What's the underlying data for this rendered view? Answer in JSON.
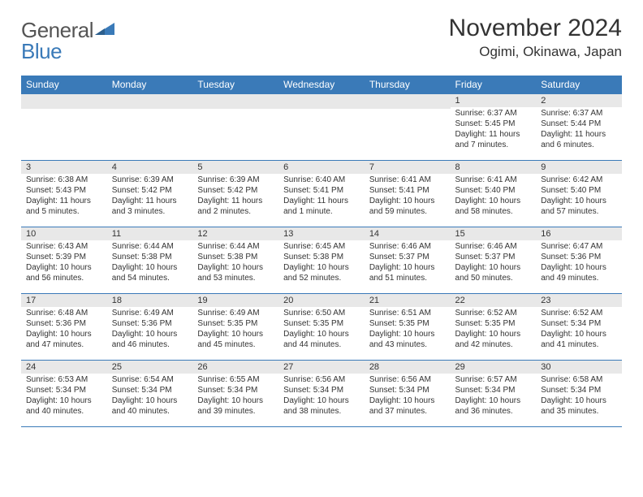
{
  "logo": {
    "word1": "General",
    "word2": "Blue"
  },
  "title": "November 2024",
  "location": "Ogimi, Okinawa, Japan",
  "colors": {
    "header_bg": "#3a7ab8",
    "header_text": "#ffffff",
    "day_band": "#e8e8e8",
    "border": "#3a7ab8",
    "text": "#333333",
    "logo_gray": "#555555",
    "logo_blue": "#3a7ab8",
    "page_bg": "#ffffff"
  },
  "weekdays": [
    "Sunday",
    "Monday",
    "Tuesday",
    "Wednesday",
    "Thursday",
    "Friday",
    "Saturday"
  ],
  "weeks": [
    [
      null,
      null,
      null,
      null,
      null,
      {
        "n": "1",
        "sunrise": "Sunrise: 6:37 AM",
        "sunset": "Sunset: 5:45 PM",
        "daylight": "Daylight: 11 hours and 7 minutes."
      },
      {
        "n": "2",
        "sunrise": "Sunrise: 6:37 AM",
        "sunset": "Sunset: 5:44 PM",
        "daylight": "Daylight: 11 hours and 6 minutes."
      }
    ],
    [
      {
        "n": "3",
        "sunrise": "Sunrise: 6:38 AM",
        "sunset": "Sunset: 5:43 PM",
        "daylight": "Daylight: 11 hours and 5 minutes."
      },
      {
        "n": "4",
        "sunrise": "Sunrise: 6:39 AM",
        "sunset": "Sunset: 5:42 PM",
        "daylight": "Daylight: 11 hours and 3 minutes."
      },
      {
        "n": "5",
        "sunrise": "Sunrise: 6:39 AM",
        "sunset": "Sunset: 5:42 PM",
        "daylight": "Daylight: 11 hours and 2 minutes."
      },
      {
        "n": "6",
        "sunrise": "Sunrise: 6:40 AM",
        "sunset": "Sunset: 5:41 PM",
        "daylight": "Daylight: 11 hours and 1 minute."
      },
      {
        "n": "7",
        "sunrise": "Sunrise: 6:41 AM",
        "sunset": "Sunset: 5:41 PM",
        "daylight": "Daylight: 10 hours and 59 minutes."
      },
      {
        "n": "8",
        "sunrise": "Sunrise: 6:41 AM",
        "sunset": "Sunset: 5:40 PM",
        "daylight": "Daylight: 10 hours and 58 minutes."
      },
      {
        "n": "9",
        "sunrise": "Sunrise: 6:42 AM",
        "sunset": "Sunset: 5:40 PM",
        "daylight": "Daylight: 10 hours and 57 minutes."
      }
    ],
    [
      {
        "n": "10",
        "sunrise": "Sunrise: 6:43 AM",
        "sunset": "Sunset: 5:39 PM",
        "daylight": "Daylight: 10 hours and 56 minutes."
      },
      {
        "n": "11",
        "sunrise": "Sunrise: 6:44 AM",
        "sunset": "Sunset: 5:38 PM",
        "daylight": "Daylight: 10 hours and 54 minutes."
      },
      {
        "n": "12",
        "sunrise": "Sunrise: 6:44 AM",
        "sunset": "Sunset: 5:38 PM",
        "daylight": "Daylight: 10 hours and 53 minutes."
      },
      {
        "n": "13",
        "sunrise": "Sunrise: 6:45 AM",
        "sunset": "Sunset: 5:38 PM",
        "daylight": "Daylight: 10 hours and 52 minutes."
      },
      {
        "n": "14",
        "sunrise": "Sunrise: 6:46 AM",
        "sunset": "Sunset: 5:37 PM",
        "daylight": "Daylight: 10 hours and 51 minutes."
      },
      {
        "n": "15",
        "sunrise": "Sunrise: 6:46 AM",
        "sunset": "Sunset: 5:37 PM",
        "daylight": "Daylight: 10 hours and 50 minutes."
      },
      {
        "n": "16",
        "sunrise": "Sunrise: 6:47 AM",
        "sunset": "Sunset: 5:36 PM",
        "daylight": "Daylight: 10 hours and 49 minutes."
      }
    ],
    [
      {
        "n": "17",
        "sunrise": "Sunrise: 6:48 AM",
        "sunset": "Sunset: 5:36 PM",
        "daylight": "Daylight: 10 hours and 47 minutes."
      },
      {
        "n": "18",
        "sunrise": "Sunrise: 6:49 AM",
        "sunset": "Sunset: 5:36 PM",
        "daylight": "Daylight: 10 hours and 46 minutes."
      },
      {
        "n": "19",
        "sunrise": "Sunrise: 6:49 AM",
        "sunset": "Sunset: 5:35 PM",
        "daylight": "Daylight: 10 hours and 45 minutes."
      },
      {
        "n": "20",
        "sunrise": "Sunrise: 6:50 AM",
        "sunset": "Sunset: 5:35 PM",
        "daylight": "Daylight: 10 hours and 44 minutes."
      },
      {
        "n": "21",
        "sunrise": "Sunrise: 6:51 AM",
        "sunset": "Sunset: 5:35 PM",
        "daylight": "Daylight: 10 hours and 43 minutes."
      },
      {
        "n": "22",
        "sunrise": "Sunrise: 6:52 AM",
        "sunset": "Sunset: 5:35 PM",
        "daylight": "Daylight: 10 hours and 42 minutes."
      },
      {
        "n": "23",
        "sunrise": "Sunrise: 6:52 AM",
        "sunset": "Sunset: 5:34 PM",
        "daylight": "Daylight: 10 hours and 41 minutes."
      }
    ],
    [
      {
        "n": "24",
        "sunrise": "Sunrise: 6:53 AM",
        "sunset": "Sunset: 5:34 PM",
        "daylight": "Daylight: 10 hours and 40 minutes."
      },
      {
        "n": "25",
        "sunrise": "Sunrise: 6:54 AM",
        "sunset": "Sunset: 5:34 PM",
        "daylight": "Daylight: 10 hours and 40 minutes."
      },
      {
        "n": "26",
        "sunrise": "Sunrise: 6:55 AM",
        "sunset": "Sunset: 5:34 PM",
        "daylight": "Daylight: 10 hours and 39 minutes."
      },
      {
        "n": "27",
        "sunrise": "Sunrise: 6:56 AM",
        "sunset": "Sunset: 5:34 PM",
        "daylight": "Daylight: 10 hours and 38 minutes."
      },
      {
        "n": "28",
        "sunrise": "Sunrise: 6:56 AM",
        "sunset": "Sunset: 5:34 PM",
        "daylight": "Daylight: 10 hours and 37 minutes."
      },
      {
        "n": "29",
        "sunrise": "Sunrise: 6:57 AM",
        "sunset": "Sunset: 5:34 PM",
        "daylight": "Daylight: 10 hours and 36 minutes."
      },
      {
        "n": "30",
        "sunrise": "Sunrise: 6:58 AM",
        "sunset": "Sunset: 5:34 PM",
        "daylight": "Daylight: 10 hours and 35 minutes."
      }
    ]
  ]
}
